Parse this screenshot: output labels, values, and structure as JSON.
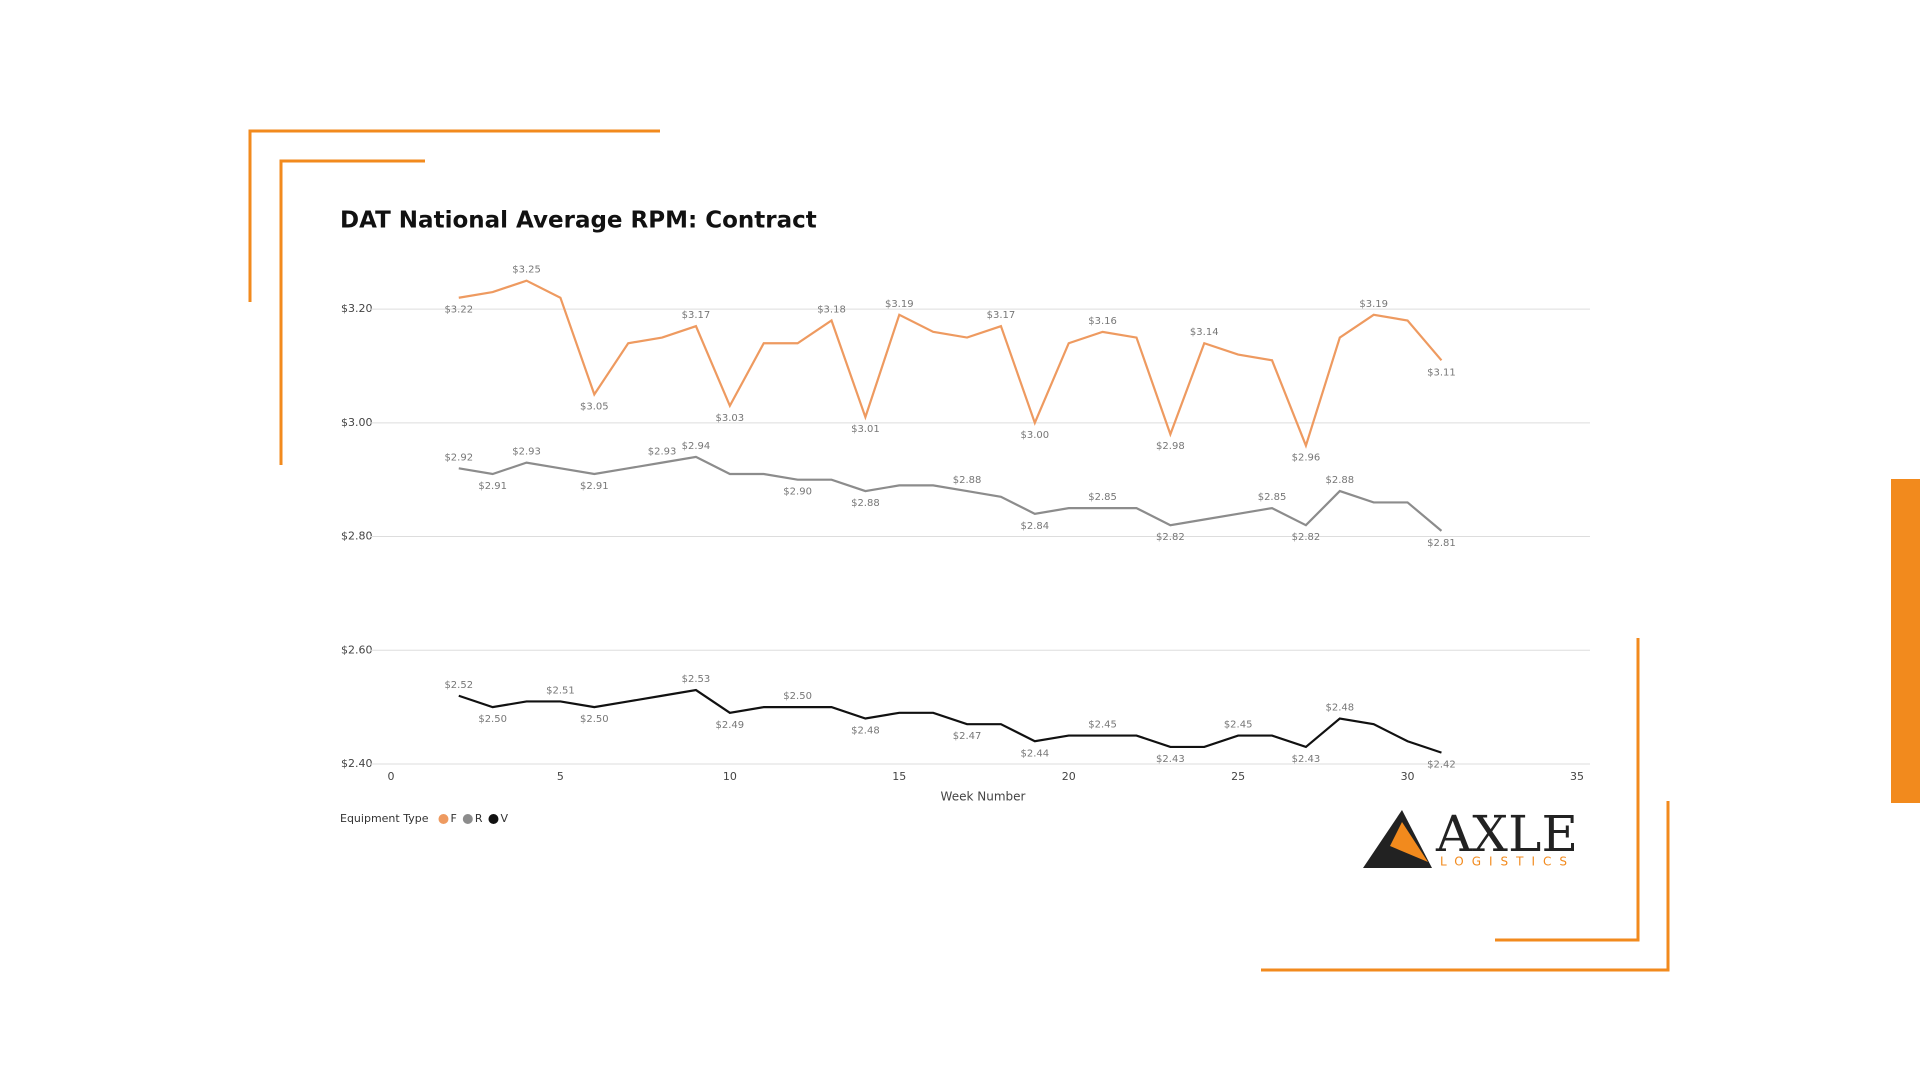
{
  "chart_data": {
    "type": "line",
    "title": "DAT National Average RPM: Contract",
    "x_label": "Week Number",
    "legend_title": "Equipment Type",
    "x": [
      2,
      3,
      4,
      5,
      6,
      7,
      8,
      9,
      10,
      11,
      12,
      13,
      14,
      15,
      16,
      17,
      18,
      19,
      20,
      21,
      22,
      23,
      24,
      25,
      26,
      27,
      28,
      29,
      30,
      31
    ],
    "xlim": [
      0,
      35
    ],
    "xticks": [
      0,
      5,
      10,
      15,
      20,
      25,
      30,
      35
    ],
    "ylim": [
      2.4,
      3.26
    ],
    "yticks": [
      {
        "value": 2.4,
        "label": "$2.40"
      },
      {
        "value": 2.6,
        "label": "$2.60"
      },
      {
        "value": 2.8,
        "label": "$2.80"
      },
      {
        "value": 3.0,
        "label": "$3.00"
      },
      {
        "value": 3.2,
        "label": "$3.20"
      }
    ],
    "grid": true,
    "series": [
      {
        "name": "F",
        "color": "#ee9a60",
        "values": [
          3.22,
          3.23,
          3.25,
          3.22,
          3.05,
          3.14,
          3.15,
          3.17,
          3.03,
          3.14,
          3.14,
          3.18,
          3.01,
          3.19,
          3.16,
          3.15,
          3.17,
          3.0,
          3.14,
          3.16,
          3.15,
          2.98,
          3.14,
          3.12,
          3.11,
          2.96,
          3.15,
          3.19,
          3.18,
          3.11
        ],
        "value_labels": [
          "$3.22",
          null,
          "$3.25",
          null,
          "$3.05",
          null,
          null,
          "$3.17",
          "$3.03",
          null,
          null,
          "$3.18",
          "$3.01",
          "$3.19",
          null,
          null,
          "$3.17",
          "$3.00",
          null,
          "$3.16",
          null,
          "$2.98",
          "$3.14",
          null,
          null,
          "$2.96",
          null,
          "$3.19",
          null,
          "$3.11"
        ]
      },
      {
        "name": "R",
        "color": "#8c8c8c",
        "values": [
          2.92,
          2.91,
          2.93,
          2.92,
          2.91,
          2.92,
          2.93,
          2.94,
          2.91,
          2.91,
          2.9,
          2.9,
          2.88,
          2.89,
          2.89,
          2.88,
          2.87,
          2.84,
          2.85,
          2.85,
          2.85,
          2.82,
          2.83,
          2.84,
          2.85,
          2.82,
          2.88,
          2.86,
          2.86,
          2.81
        ],
        "value_labels": [
          "$2.92",
          "$2.91",
          "$2.93",
          null,
          "$2.91",
          null,
          "$2.93",
          "$2.94",
          null,
          null,
          "$2.90",
          null,
          "$2.88",
          null,
          null,
          "$2.88",
          null,
          "$2.84",
          null,
          "$2.85",
          null,
          "$2.82",
          null,
          null,
          "$2.85",
          "$2.82",
          "$2.88",
          null,
          null,
          "$2.81"
        ]
      },
      {
        "name": "V",
        "color": "#111111",
        "values": [
          2.52,
          2.5,
          2.51,
          2.51,
          2.5,
          2.51,
          2.52,
          2.53,
          2.49,
          2.5,
          2.5,
          2.5,
          2.48,
          2.49,
          2.49,
          2.47,
          2.47,
          2.44,
          2.45,
          2.45,
          2.45,
          2.43,
          2.43,
          2.45,
          2.45,
          2.43,
          2.48,
          2.47,
          2.44,
          2.42
        ],
        "value_labels": [
          "$2.52",
          "$2.50",
          null,
          "$2.51",
          "$2.50",
          null,
          null,
          "$2.53",
          "$2.49",
          null,
          "$2.50",
          null,
          "$2.48",
          null,
          null,
          "$2.47",
          null,
          "$2.44",
          null,
          "$2.45",
          null,
          "$2.43",
          null,
          "$2.45",
          null,
          "$2.43",
          "$2.48",
          null,
          null,
          "$2.42"
        ]
      }
    ]
  },
  "logo": {
    "name": "AXLE",
    "tagline": "LOGISTICS"
  }
}
